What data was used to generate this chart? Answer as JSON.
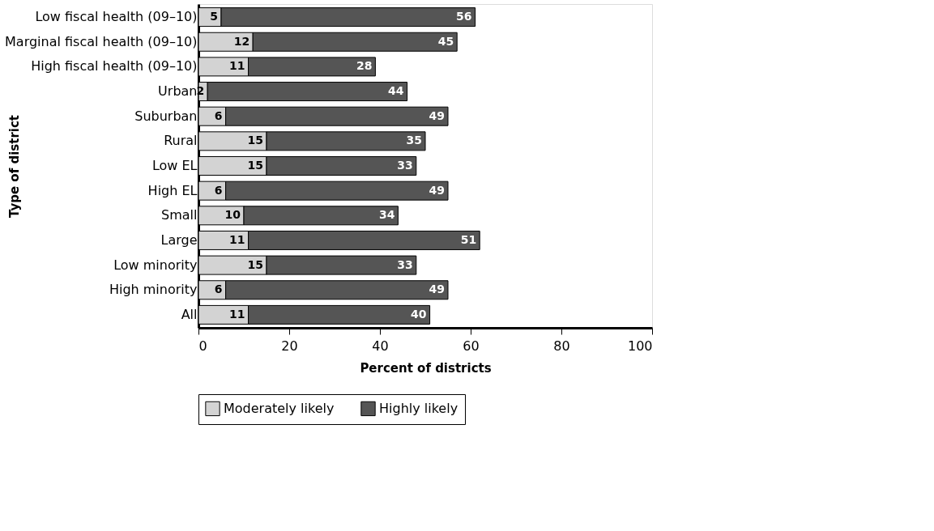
{
  "chart_data": {
    "type": "bar",
    "orientation": "horizontal",
    "stacked": true,
    "xlabel": "Percent of districts",
    "ylabel": "Type of district",
    "categories": [
      "Low fiscal health (09–10)",
      "Marginal fiscal health (09–10)",
      "High fiscal health (09–10)",
      "Urban",
      "Suburban",
      "Rural",
      "Low EL",
      "High EL",
      "Small",
      "Large",
      "Low minority",
      "High minority",
      "All"
    ],
    "series": [
      {
        "name": "Moderately likely",
        "color": "#d3d3d3",
        "values": [
          5,
          12,
          11,
          2,
          6,
          15,
          15,
          6,
          10,
          11,
          15,
          6,
          11
        ]
      },
      {
        "name": "Highly likely",
        "color": "#555555",
        "values": [
          56,
          45,
          28,
          44,
          49,
          35,
          33,
          49,
          34,
          51,
          33,
          49,
          40
        ]
      }
    ],
    "xlim": [
      0,
      100
    ],
    "xticks": [
      0,
      20,
      40,
      60,
      80,
      100
    ],
    "data_labels": true,
    "legend": "bottom",
    "grid": false
  }
}
